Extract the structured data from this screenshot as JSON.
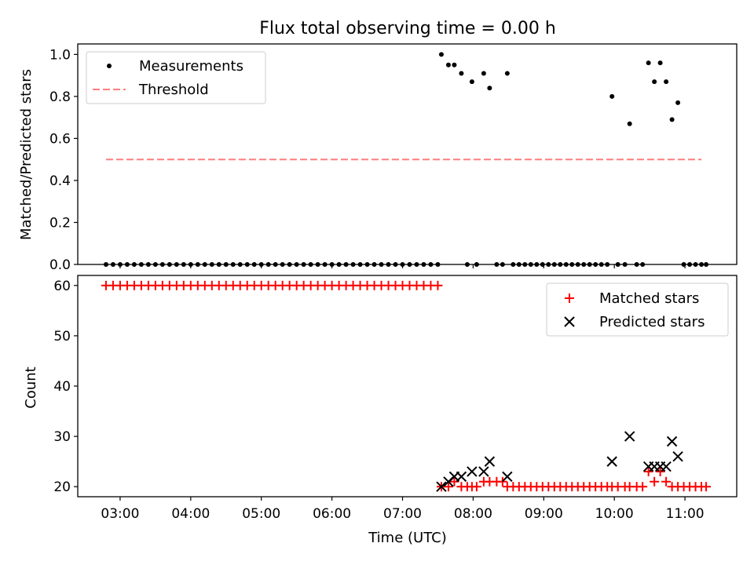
{
  "chart_data": [
    {
      "type": "scatter",
      "title": "Flux total observing time = 0.00 h",
      "xlabel": "",
      "ylabel": "Matched/Predicted stars",
      "xlim": [
        "02:24",
        "11:44"
      ],
      "ylim": [
        0,
        1.05
      ],
      "yticks": [
        0.0,
        0.2,
        0.4,
        0.6,
        0.8,
        1.0
      ],
      "yticklabels": [
        "0.0",
        "0.2",
        "0.4",
        "0.6",
        "0.8",
        "1.0"
      ],
      "legend": {
        "position": "upper left",
        "entries": [
          "Measurements",
          "Threshold"
        ]
      },
      "grid": false,
      "series": [
        {
          "name": "Measurements",
          "marker": "dot",
          "color": "#000000",
          "points": [
            [
              "02:48",
              0
            ],
            [
              "02:54",
              0
            ],
            [
              "03:00",
              0
            ],
            [
              "03:06",
              0
            ],
            [
              "03:12",
              0
            ],
            [
              "03:18",
              0
            ],
            [
              "03:24",
              0
            ],
            [
              "03:30",
              0
            ],
            [
              "03:36",
              0
            ],
            [
              "03:42",
              0
            ],
            [
              "03:48",
              0
            ],
            [
              "03:54",
              0
            ],
            [
              "04:00",
              0
            ],
            [
              "04:06",
              0
            ],
            [
              "04:12",
              0
            ],
            [
              "04:18",
              0
            ],
            [
              "04:24",
              0
            ],
            [
              "04:30",
              0
            ],
            [
              "04:36",
              0
            ],
            [
              "04:42",
              0
            ],
            [
              "04:48",
              0
            ],
            [
              "04:54",
              0
            ],
            [
              "05:00",
              0
            ],
            [
              "05:06",
              0
            ],
            [
              "05:12",
              0
            ],
            [
              "05:18",
              0
            ],
            [
              "05:24",
              0
            ],
            [
              "05:30",
              0
            ],
            [
              "05:36",
              0
            ],
            [
              "05:42",
              0
            ],
            [
              "05:48",
              0
            ],
            [
              "05:54",
              0
            ],
            [
              "06:00",
              0
            ],
            [
              "06:06",
              0
            ],
            [
              "06:12",
              0
            ],
            [
              "06:18",
              0
            ],
            [
              "06:24",
              0
            ],
            [
              "06:30",
              0
            ],
            [
              "06:36",
              0
            ],
            [
              "06:42",
              0
            ],
            [
              "06:48",
              0
            ],
            [
              "06:54",
              0
            ],
            [
              "07:00",
              0
            ],
            [
              "07:06",
              0
            ],
            [
              "07:12",
              0
            ],
            [
              "07:18",
              0
            ],
            [
              "07:24",
              0
            ],
            [
              "07:30",
              0
            ],
            [
              "07:33",
              1.0
            ],
            [
              "07:39",
              0.95
            ],
            [
              "07:44",
              0.95
            ],
            [
              "07:50",
              0.91
            ],
            [
              "07:55",
              0
            ],
            [
              "07:59",
              0.87
            ],
            [
              "08:03",
              0
            ],
            [
              "08:09",
              0.91
            ],
            [
              "08:14",
              0.84
            ],
            [
              "08:20",
              0
            ],
            [
              "08:25",
              0
            ],
            [
              "08:29",
              0.91
            ],
            [
              "08:34",
              0
            ],
            [
              "08:39",
              0
            ],
            [
              "08:44",
              0
            ],
            [
              "08:49",
              0
            ],
            [
              "08:54",
              0
            ],
            [
              "08:59",
              0
            ],
            [
              "09:04",
              0
            ],
            [
              "09:09",
              0
            ],
            [
              "09:14",
              0
            ],
            [
              "09:19",
              0
            ],
            [
              "09:24",
              0
            ],
            [
              "09:29",
              0
            ],
            [
              "09:34",
              0
            ],
            [
              "09:39",
              0
            ],
            [
              "09:44",
              0
            ],
            [
              "09:49",
              0
            ],
            [
              "09:54",
              0
            ],
            [
              "09:58",
              0.8
            ],
            [
              "10:03",
              0
            ],
            [
              "10:09",
              0
            ],
            [
              "10:13",
              0.67
            ],
            [
              "10:19",
              0
            ],
            [
              "10:24",
              0
            ],
            [
              "10:29",
              0.96
            ],
            [
              "10:34",
              0.87
            ],
            [
              "10:39",
              0.96
            ],
            [
              "10:44",
              0.87
            ],
            [
              "10:49",
              0.69
            ],
            [
              "10:54",
              0.77
            ],
            [
              "10:59",
              0
            ],
            [
              "11:04",
              0
            ],
            [
              "11:09",
              0
            ],
            [
              "11:14",
              0
            ],
            [
              "11:18",
              0
            ]
          ]
        },
        {
          "name": "Threshold",
          "style": "dashed",
          "color": "#ff7f7f",
          "points": [
            [
              "02:48",
              0.5
            ],
            [
              "11:14",
              0.5
            ]
          ]
        }
      ]
    },
    {
      "type": "scatter",
      "title": "",
      "xlabel": "Time (UTC)",
      "ylabel": "Count",
      "xlim": [
        "02:24",
        "11:44"
      ],
      "ylim": [
        18,
        62
      ],
      "xticks": [
        "03:00",
        "04:00",
        "05:00",
        "06:00",
        "07:00",
        "08:00",
        "09:00",
        "10:00",
        "11:00"
      ],
      "yticks": [
        20,
        30,
        40,
        50,
        60
      ],
      "yticklabels": [
        "20",
        "30",
        "40",
        "50",
        "60"
      ],
      "legend": {
        "position": "upper right",
        "entries": [
          "Matched stars",
          "Predicted stars"
        ]
      },
      "grid": false,
      "series": [
        {
          "name": "Matched stars",
          "marker": "plus",
          "color": "#ff0000",
          "points": [
            [
              "02:48",
              60
            ],
            [
              "02:54",
              60
            ],
            [
              "03:00",
              60
            ],
            [
              "03:06",
              60
            ],
            [
              "03:12",
              60
            ],
            [
              "03:18",
              60
            ],
            [
              "03:24",
              60
            ],
            [
              "03:30",
              60
            ],
            [
              "03:36",
              60
            ],
            [
              "03:42",
              60
            ],
            [
              "03:48",
              60
            ],
            [
              "03:54",
              60
            ],
            [
              "04:00",
              60
            ],
            [
              "04:06",
              60
            ],
            [
              "04:12",
              60
            ],
            [
              "04:18",
              60
            ],
            [
              "04:24",
              60
            ],
            [
              "04:30",
              60
            ],
            [
              "04:36",
              60
            ],
            [
              "04:42",
              60
            ],
            [
              "04:48",
              60
            ],
            [
              "04:54",
              60
            ],
            [
              "05:00",
              60
            ],
            [
              "05:06",
              60
            ],
            [
              "05:12",
              60
            ],
            [
              "05:18",
              60
            ],
            [
              "05:24",
              60
            ],
            [
              "05:30",
              60
            ],
            [
              "05:36",
              60
            ],
            [
              "05:42",
              60
            ],
            [
              "05:48",
              60
            ],
            [
              "05:54",
              60
            ],
            [
              "06:00",
              60
            ],
            [
              "06:06",
              60
            ],
            [
              "06:12",
              60
            ],
            [
              "06:18",
              60
            ],
            [
              "06:24",
              60
            ],
            [
              "06:30",
              60
            ],
            [
              "06:36",
              60
            ],
            [
              "06:42",
              60
            ],
            [
              "06:48",
              60
            ],
            [
              "06:54",
              60
            ],
            [
              "07:00",
              60
            ],
            [
              "07:06",
              60
            ],
            [
              "07:12",
              60
            ],
            [
              "07:18",
              60
            ],
            [
              "07:24",
              60
            ],
            [
              "07:30",
              60
            ],
            [
              "07:33",
              20
            ],
            [
              "07:39",
              20
            ],
            [
              "07:44",
              21
            ],
            [
              "07:50",
              20
            ],
            [
              "07:55",
              20
            ],
            [
              "07:59",
              20
            ],
            [
              "08:03",
              20
            ],
            [
              "08:09",
              21
            ],
            [
              "08:14",
              21
            ],
            [
              "08:20",
              21
            ],
            [
              "08:25",
              21
            ],
            [
              "08:29",
              20
            ],
            [
              "08:34",
              20
            ],
            [
              "08:39",
              20
            ],
            [
              "08:44",
              20
            ],
            [
              "08:49",
              20
            ],
            [
              "08:54",
              20
            ],
            [
              "08:59",
              20
            ],
            [
              "09:04",
              20
            ],
            [
              "09:09",
              20
            ],
            [
              "09:14",
              20
            ],
            [
              "09:19",
              20
            ],
            [
              "09:24",
              20
            ],
            [
              "09:29",
              20
            ],
            [
              "09:34",
              20
            ],
            [
              "09:39",
              20
            ],
            [
              "09:44",
              20
            ],
            [
              "09:49",
              20
            ],
            [
              "09:54",
              20
            ],
            [
              "09:58",
              20
            ],
            [
              "10:03",
              20
            ],
            [
              "10:09",
              20
            ],
            [
              "10:13",
              20
            ],
            [
              "10:19",
              20
            ],
            [
              "10:24",
              20
            ],
            [
              "10:29",
              23
            ],
            [
              "10:34",
              21
            ],
            [
              "10:39",
              23
            ],
            [
              "10:44",
              21
            ],
            [
              "10:49",
              20
            ],
            [
              "10:54",
              20
            ],
            [
              "10:59",
              20
            ],
            [
              "11:04",
              20
            ],
            [
              "11:09",
              20
            ],
            [
              "11:14",
              20
            ],
            [
              "11:18",
              20
            ]
          ]
        },
        {
          "name": "Predicted stars",
          "marker": "x",
          "color": "#000000",
          "points": [
            [
              "07:33",
              20
            ],
            [
              "07:39",
              21
            ],
            [
              "07:44",
              22
            ],
            [
              "07:50",
              22
            ],
            [
              "07:59",
              23
            ],
            [
              "08:09",
              23
            ],
            [
              "08:14",
              25
            ],
            [
              "08:29",
              22
            ],
            [
              "09:58",
              25
            ],
            [
              "10:13",
              30
            ],
            [
              "10:29",
              24
            ],
            [
              "10:34",
              24
            ],
            [
              "10:39",
              24
            ],
            [
              "10:44",
              24
            ],
            [
              "10:49",
              29
            ],
            [
              "10:54",
              26
            ]
          ]
        }
      ]
    }
  ]
}
